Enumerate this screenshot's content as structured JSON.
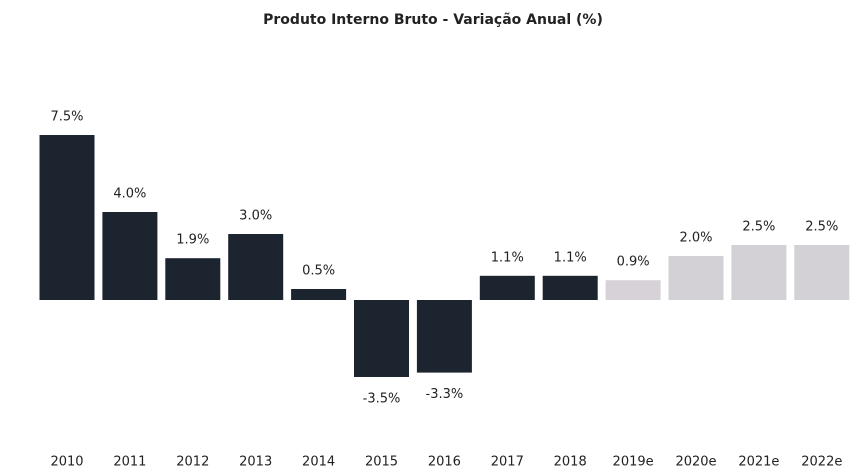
{
  "chart_data": {
    "type": "bar",
    "title": "Produto Interno Bruto - Variação Anual (%)",
    "categories": [
      "2010",
      "2011",
      "2012",
      "2013",
      "2014",
      "2015",
      "2016",
      "2017",
      "2018",
      "2019e",
      "2020e",
      "2021e",
      "2022e"
    ],
    "values": [
      7.5,
      4.0,
      1.9,
      3.0,
      0.5,
      -3.5,
      -3.3,
      1.1,
      1.1,
      0.9,
      2.0,
      2.5,
      2.5
    ],
    "value_labels": [
      "7.5%",
      "4.0%",
      "1.9%",
      "3.0%",
      "0.5%",
      "-3.5%",
      "-3.3%",
      "1.1%",
      "1.1%",
      "0.9%",
      "2.0%",
      "2.5%",
      "2.5%"
    ],
    "colors": [
      "#1c2430",
      "#1c2430",
      "#1c2430",
      "#1c2430",
      "#1c2430",
      "#1c2430",
      "#1c2430",
      "#1c2430",
      "#1c2430",
      "#d6d2d8",
      "#d3d0d6",
      "#d3d0d6",
      "#d3d0d6"
    ]
  }
}
